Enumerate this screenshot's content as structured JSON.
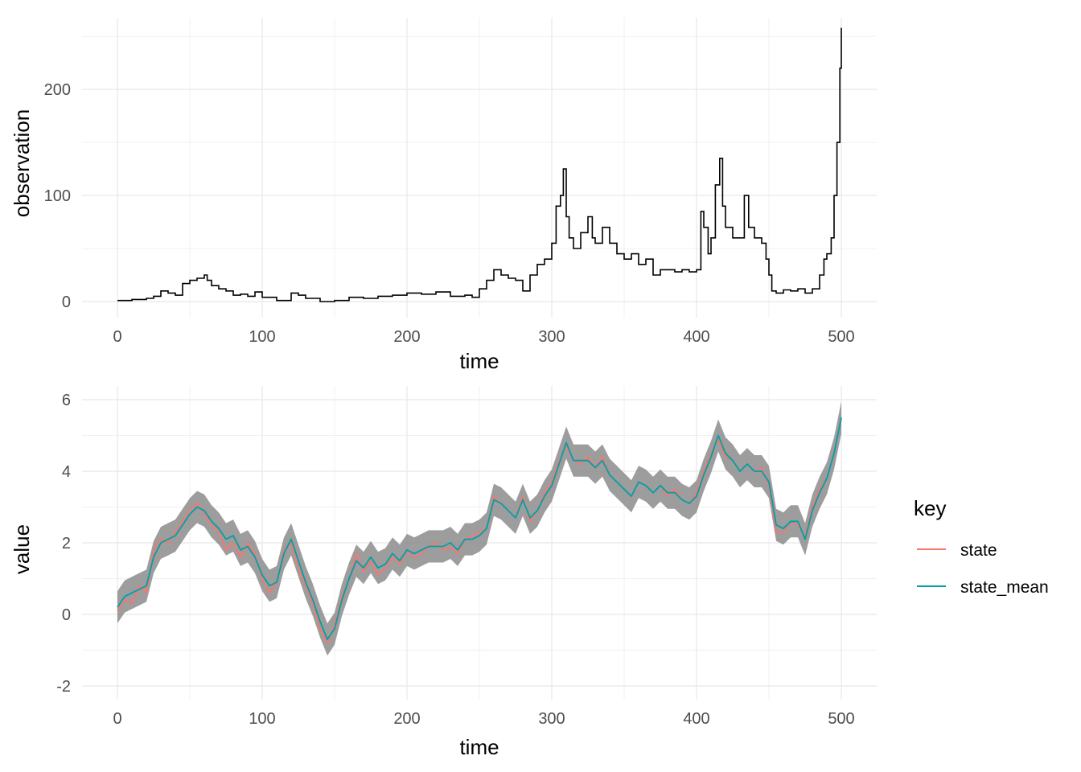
{
  "chart_data": [
    {
      "type": "line",
      "title": "",
      "xlabel": "time",
      "ylabel": "observation",
      "xlim": [
        0,
        500
      ],
      "ylim": [
        0,
        260
      ],
      "x_ticks": [
        0,
        100,
        200,
        300,
        400,
        500
      ],
      "y_ticks": [
        0,
        100,
        200
      ],
      "grid": true,
      "series": [
        {
          "color": "#000000",
          "step": true,
          "points": [
            [
              0,
              1
            ],
            [
              10,
              2
            ],
            [
              20,
              3
            ],
            [
              25,
              5
            ],
            [
              30,
              10
            ],
            [
              35,
              8
            ],
            [
              40,
              6
            ],
            [
              45,
              17
            ],
            [
              50,
              20
            ],
            [
              55,
              22
            ],
            [
              60,
              25
            ],
            [
              62,
              20
            ],
            [
              65,
              15
            ],
            [
              70,
              12
            ],
            [
              75,
              10
            ],
            [
              80,
              6
            ],
            [
              85,
              7
            ],
            [
              90,
              5
            ],
            [
              95,
              9
            ],
            [
              100,
              4
            ],
            [
              110,
              1
            ],
            [
              120,
              8
            ],
            [
              125,
              6
            ],
            [
              130,
              3
            ],
            [
              140,
              0
            ],
            [
              150,
              1
            ],
            [
              160,
              4
            ],
            [
              170,
              3
            ],
            [
              180,
              5
            ],
            [
              190,
              6
            ],
            [
              200,
              8
            ],
            [
              210,
              7
            ],
            [
              220,
              9
            ],
            [
              230,
              5
            ],
            [
              240,
              6
            ],
            [
              245,
              4
            ],
            [
              250,
              12
            ],
            [
              255,
              20
            ],
            [
              260,
              30
            ],
            [
              265,
              25
            ],
            [
              270,
              22
            ],
            [
              275,
              20
            ],
            [
              280,
              10
            ],
            [
              285,
              25
            ],
            [
              290,
              35
            ],
            [
              295,
              40
            ],
            [
              300,
              55
            ],
            [
              303,
              90
            ],
            [
              306,
              100
            ],
            [
              308,
              125
            ],
            [
              310,
              80
            ],
            [
              312,
              60
            ],
            [
              315,
              50
            ],
            [
              320,
              65
            ],
            [
              325,
              80
            ],
            [
              328,
              60
            ],
            [
              330,
              55
            ],
            [
              335,
              70
            ],
            [
              340,
              55
            ],
            [
              345,
              45
            ],
            [
              350,
              40
            ],
            [
              355,
              45
            ],
            [
              360,
              35
            ],
            [
              365,
              40
            ],
            [
              370,
              25
            ],
            [
              375,
              30
            ],
            [
              380,
              30
            ],
            [
              385,
              28
            ],
            [
              390,
              30
            ],
            [
              395,
              28
            ],
            [
              400,
              30
            ],
            [
              403,
              85
            ],
            [
              405,
              70
            ],
            [
              408,
              45
            ],
            [
              410,
              60
            ],
            [
              413,
              110
            ],
            [
              416,
              135
            ],
            [
              418,
              90
            ],
            [
              420,
              70
            ],
            [
              425,
              60
            ],
            [
              430,
              60
            ],
            [
              433,
              100
            ],
            [
              436,
              70
            ],
            [
              440,
              60
            ],
            [
              445,
              55
            ],
            [
              448,
              40
            ],
            [
              450,
              25
            ],
            [
              452,
              10
            ],
            [
              455,
              8
            ],
            [
              460,
              11
            ],
            [
              465,
              10
            ],
            [
              470,
              12
            ],
            [
              475,
              8
            ],
            [
              480,
              12
            ],
            [
              485,
              25
            ],
            [
              488,
              40
            ],
            [
              490,
              45
            ],
            [
              493,
              60
            ],
            [
              495,
              100
            ],
            [
              497,
              150
            ],
            [
              499,
              220
            ],
            [
              500,
              258
            ]
          ]
        }
      ]
    },
    {
      "type": "area",
      "title": "",
      "xlabel": "time",
      "ylabel": "value",
      "xlim": [
        0,
        500
      ],
      "ylim": [
        -2,
        6
      ],
      "x_ticks": [
        0,
        100,
        200,
        300,
        400,
        500
      ],
      "y_ticks": [
        -2,
        0,
        2,
        4,
        6
      ],
      "grid": true,
      "band": {
        "color": "#8c8c8c",
        "half_width": 0.45,
        "center_series": "state_mean"
      },
      "legend": {
        "title": "key",
        "placement": "right",
        "entries": [
          "state",
          "state_mean"
        ]
      },
      "series": [
        {
          "name": "state",
          "color": "#f8766d",
          "x": [
            0,
            5,
            10,
            15,
            20,
            25,
            30,
            35,
            40,
            45,
            50,
            55,
            60,
            65,
            70,
            75,
            80,
            85,
            90,
            95,
            100,
            105,
            110,
            115,
            120,
            125,
            130,
            135,
            140,
            145,
            150,
            155,
            160,
            165,
            170,
            175,
            180,
            185,
            190,
            195,
            200,
            205,
            210,
            215,
            220,
            225,
            230,
            235,
            240,
            245,
            250,
            255,
            260,
            265,
            270,
            275,
            280,
            285,
            290,
            295,
            300,
            305,
            310,
            315,
            320,
            325,
            330,
            335,
            340,
            345,
            350,
            355,
            360,
            365,
            370,
            375,
            380,
            385,
            390,
            395,
            400,
            405,
            410,
            415,
            420,
            425,
            430,
            435,
            440,
            445,
            450,
            455,
            460,
            465,
            470,
            475,
            480,
            485,
            490,
            495,
            500
          ],
          "y": [
            0.1,
            0.4,
            0.3,
            0.8,
            0.6,
            1.8,
            2.1,
            2.0,
            2.3,
            2.6,
            2.9,
            3.1,
            2.8,
            2.5,
            2.3,
            1.8,
            2.0,
            1.6,
            2.0,
            1.7,
            1.0,
            0.6,
            0.9,
            1.8,
            2.0,
            1.3,
            0.8,
            0.3,
            -0.4,
            -0.8,
            -0.3,
            0.5,
            1.0,
            1.7,
            1.2,
            1.5,
            1.1,
            1.3,
            1.6,
            1.4,
            1.8,
            1.6,
            1.7,
            1.9,
            2.0,
            1.8,
            1.9,
            1.7,
            2.1,
            2.2,
            2.3,
            2.4,
            3.3,
            3.1,
            2.9,
            2.7,
            3.3,
            2.6,
            2.9,
            3.4,
            3.7,
            4.3,
            4.7,
            4.3,
            4.2,
            4.4,
            4.1,
            4.4,
            3.9,
            3.7,
            3.5,
            3.3,
            3.7,
            3.6,
            3.4,
            3.6,
            3.3,
            3.5,
            3.2,
            3.1,
            3.4,
            4.0,
            4.5,
            4.9,
            4.4,
            4.3,
            4.0,
            4.2,
            4.0,
            4.1,
            3.6,
            2.3,
            2.3,
            2.6,
            2.5,
            2.2,
            3.0,
            3.5,
            3.8,
            4.5,
            5.5
          ]
        },
        {
          "name": "state_mean",
          "color": "#00a0a8",
          "x": [
            0,
            5,
            10,
            15,
            20,
            25,
            30,
            35,
            40,
            45,
            50,
            55,
            60,
            65,
            70,
            75,
            80,
            85,
            90,
            95,
            100,
            105,
            110,
            115,
            120,
            125,
            130,
            135,
            140,
            145,
            150,
            155,
            160,
            165,
            170,
            175,
            180,
            185,
            190,
            195,
            200,
            205,
            210,
            215,
            220,
            225,
            230,
            235,
            240,
            245,
            250,
            255,
            260,
            265,
            270,
            275,
            280,
            285,
            290,
            295,
            300,
            305,
            310,
            315,
            320,
            325,
            330,
            335,
            340,
            345,
            350,
            355,
            360,
            365,
            370,
            375,
            380,
            385,
            390,
            395,
            400,
            405,
            410,
            415,
            420,
            425,
            430,
            435,
            440,
            445,
            450,
            455,
            460,
            465,
            470,
            475,
            480,
            485,
            490,
            495,
            500
          ],
          "y": [
            0.2,
            0.5,
            0.6,
            0.7,
            0.8,
            1.6,
            2.0,
            2.1,
            2.2,
            2.5,
            2.8,
            3.0,
            2.9,
            2.6,
            2.4,
            2.1,
            2.2,
            1.8,
            1.9,
            1.6,
            1.1,
            0.8,
            0.9,
            1.7,
            2.1,
            1.5,
            0.9,
            0.4,
            -0.2,
            -0.7,
            -0.4,
            0.4,
            1.0,
            1.5,
            1.3,
            1.6,
            1.3,
            1.4,
            1.7,
            1.5,
            1.8,
            1.7,
            1.8,
            1.9,
            1.9,
            1.9,
            2.0,
            1.8,
            2.1,
            2.1,
            2.2,
            2.4,
            3.2,
            3.1,
            2.9,
            2.7,
            3.2,
            2.7,
            2.9,
            3.3,
            3.6,
            4.2,
            4.8,
            4.3,
            4.3,
            4.3,
            4.1,
            4.3,
            3.9,
            3.7,
            3.5,
            3.3,
            3.7,
            3.6,
            3.4,
            3.6,
            3.4,
            3.4,
            3.2,
            3.1,
            3.3,
            3.9,
            4.4,
            5.0,
            4.5,
            4.3,
            4.0,
            4.2,
            4.0,
            4.0,
            3.7,
            2.5,
            2.4,
            2.6,
            2.6,
            2.1,
            2.9,
            3.4,
            3.8,
            4.5,
            5.5
          ]
        }
      ]
    }
  ]
}
